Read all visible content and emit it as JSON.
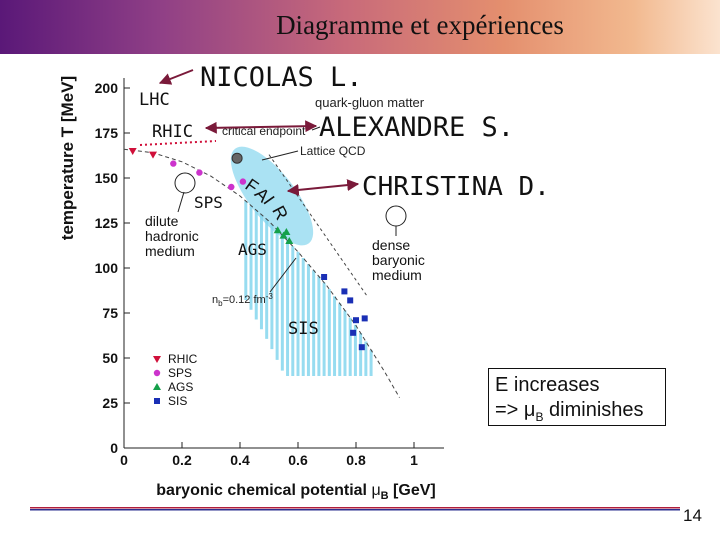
{
  "slide": {
    "title": "Diagramme et expériences",
    "page_number": "14"
  },
  "annotations": {
    "nicolas": "NICOLAS L.",
    "alexandre": "ALEXANDRE S.",
    "christina": "CHRISTINA D.",
    "lhc": "LHC",
    "rhic": "RHIC",
    "sps": "SPS",
    "ags": "AGS",
    "sis": "SIS",
    "fair_letters": [
      "F",
      "A",
      "I",
      "R"
    ]
  },
  "infobox": {
    "line1": "E increases",
    "line2_prefix": "=> ",
    "line2_mu": "μ",
    "line2_sub": "B",
    "line2_suffix": " diminishes"
  },
  "colors": {
    "rhic": "#d0103a",
    "sps": "#cc33cc",
    "ags": "#15a04a",
    "sis": "#1a2fb5",
    "shading": "#86d6ee",
    "arrow": "#7a1a3a"
  },
  "diagram": {
    "ylabel": "temperature T [MeV]",
    "xlabel": "baryonic chemical potential μ_B [GeV]",
    "xlabel_main": "baryonic chemical potential ",
    "xlabel_mu": "μ",
    "xlabel_sub": "B",
    "xlabel_unit": " [GeV]",
    "xlim": [
      0,
      1.1
    ],
    "ylim": [
      0,
      210
    ],
    "xticks": [
      0,
      0.2,
      0.4,
      0.6,
      0.8,
      1
    ],
    "xtick_labels": [
      "0",
      "0.2",
      "0.4",
      "0.6",
      "0.8",
      "1"
    ],
    "yticks": [
      0,
      25,
      50,
      75,
      100,
      125,
      150,
      175,
      200
    ],
    "ytick_labels": [
      "0",
      "25",
      "50",
      "75",
      "100",
      "125",
      "150",
      "175",
      "200"
    ],
    "region_labels": {
      "qgm": "quark-gluon matter",
      "critical": "critical endpoint",
      "lattice": "Lattice QCD",
      "dilute": [
        "dilute",
        "hadronic",
        "medium"
      ],
      "dense": [
        "dense",
        "baryonic",
        "medium"
      ],
      "density_prefix": "n",
      "density_sub": "b",
      "density_value": "=0.12 fm",
      "density_sup": "-3"
    },
    "legend": [
      "RHIC",
      "SPS",
      "AGS",
      "SIS"
    ],
    "critical_endpoint": [
      0.39,
      161
    ],
    "freezeout_curve": [
      [
        0,
        166
      ],
      [
        0.1,
        164
      ],
      [
        0.2,
        159
      ],
      [
        0.3,
        151
      ],
      [
        0.4,
        140
      ],
      [
        0.5,
        126
      ],
      [
        0.6,
        109
      ],
      [
        0.7,
        90
      ],
      [
        0.8,
        68
      ],
      [
        0.9,
        42
      ],
      [
        0.95,
        28
      ]
    ],
    "density_line": [
      [
        0.5,
        163
      ],
      [
        0.84,
        84
      ]
    ],
    "data_points": {
      "RHIC": [
        [
          0.03,
          165
        ],
        [
          0.1,
          163
        ]
      ],
      "SPS": [
        [
          0.17,
          158
        ],
        [
          0.26,
          153
        ],
        [
          0.37,
          145
        ],
        [
          0.41,
          148
        ]
      ],
      "AGS": [
        [
          0.53,
          121
        ],
        [
          0.55,
          118
        ],
        [
          0.57,
          115
        ],
        [
          0.56,
          120
        ]
      ],
      "SIS": [
        [
          0.69,
          95
        ],
        [
          0.76,
          87
        ],
        [
          0.8,
          71
        ],
        [
          0.79,
          64
        ],
        [
          0.83,
          72
        ],
        [
          0.78,
          82
        ],
        [
          0.82,
          56
        ]
      ]
    }
  }
}
